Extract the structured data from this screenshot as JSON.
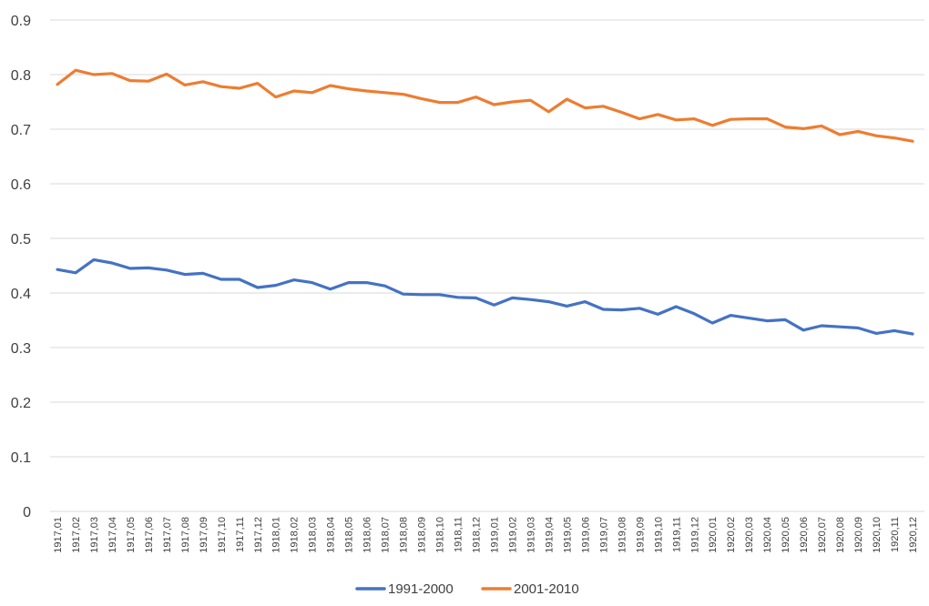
{
  "chart_data": {
    "type": "line",
    "title": "",
    "xlabel": "",
    "ylabel": "",
    "ylim": [
      0,
      0.9
    ],
    "yticks": [
      "0",
      "0.1",
      "0.2",
      "0.3",
      "0.4",
      "0.5",
      "0.6",
      "0.7",
      "0.8",
      "0.9"
    ],
    "grid": true,
    "legend_position": "bottom",
    "categories": [
      "1917,01",
      "1917,02",
      "1917,03",
      "1917,04",
      "1917,05",
      "1917,06",
      "1917,07",
      "1917,08",
      "1917,09",
      "1917,10",
      "1917,11",
      "1917,12",
      "1918,01",
      "1918,02",
      "1918,03",
      "1918,04",
      "1918,05",
      "1918,06",
      "1918,07",
      "1918,08",
      "1918,09",
      "1918,10",
      "1918,11",
      "1918,12",
      "1919,01",
      "1919,02",
      "1919,03",
      "1919,04",
      "1919,05",
      "1919,06",
      "1919,07",
      "1919,08",
      "1919,09",
      "1919,10",
      "1919,11",
      "1919,12",
      "1920,01",
      "1920,02",
      "1920,03",
      "1920,04",
      "1920,05",
      "1920,06",
      "1920,07",
      "1920,08",
      "1920,09",
      "1920,10",
      "1920,11",
      "1920,12"
    ],
    "series": [
      {
        "name": "1991-2000",
        "color": "#4472C4",
        "values": [
          0.443,
          0.437,
          0.461,
          0.455,
          0.445,
          0.446,
          0.442,
          0.434,
          0.436,
          0.425,
          0.425,
          0.41,
          0.414,
          0.424,
          0.419,
          0.407,
          0.419,
          0.419,
          0.413,
          0.398,
          0.397,
          0.397,
          0.392,
          0.391,
          0.378,
          0.391,
          0.388,
          0.384,
          0.376,
          0.384,
          0.37,
          0.369,
          0.372,
          0.361,
          0.375,
          0.362,
          0.345,
          0.359,
          0.354,
          0.349,
          0.351,
          0.332,
          0.34,
          0.338,
          0.336,
          0.326,
          0.331,
          0.325
        ]
      },
      {
        "name": "2001-2010",
        "color": "#ED7D31",
        "values": [
          0.782,
          0.808,
          0.8,
          0.802,
          0.789,
          0.788,
          0.801,
          0.781,
          0.787,
          0.778,
          0.775,
          0.784,
          0.759,
          0.77,
          0.767,
          0.78,
          0.774,
          0.77,
          0.767,
          0.764,
          0.756,
          0.749,
          0.749,
          0.759,
          0.745,
          0.75,
          0.753,
          0.732,
          0.755,
          0.739,
          0.742,
          0.731,
          0.719,
          0.727,
          0.717,
          0.719,
          0.707,
          0.718,
          0.719,
          0.719,
          0.704,
          0.701,
          0.706,
          0.69,
          0.696,
          0.688,
          0.684,
          0.678
        ]
      }
    ]
  }
}
